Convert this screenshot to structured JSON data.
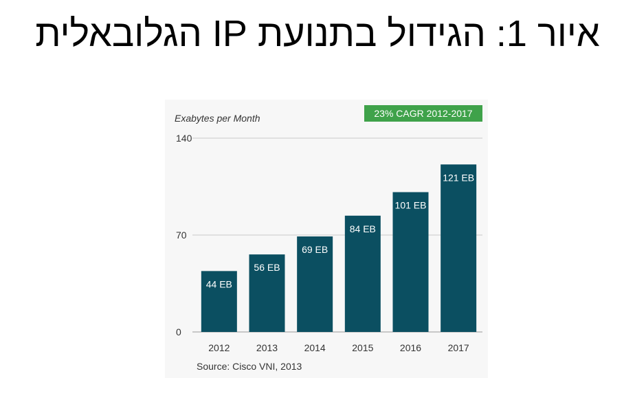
{
  "slide": {
    "title": "איור 1: הגידול בתנועת IP הגלובאלית"
  },
  "chart_data": {
    "type": "bar",
    "ylabel": "Exabytes per Month",
    "badge": "23% CAGR 2012-2017",
    "source": "Source: Cisco VNI, 2013",
    "categories": [
      "2012",
      "2013",
      "2014",
      "2015",
      "2016",
      "2017"
    ],
    "values": [
      44,
      56,
      69,
      84,
      101,
      121
    ],
    "data_labels": [
      "44 EB",
      "56 EB",
      "69 EB",
      "84 EB",
      "101 EB",
      "121 EB"
    ],
    "yticks": [
      0,
      70,
      140
    ],
    "ylim": [
      0,
      140
    ],
    "grid": true,
    "colors": {
      "bar": "#0b4f61",
      "badge": "#3fa24a",
      "grid": "#c9c9c9"
    }
  }
}
